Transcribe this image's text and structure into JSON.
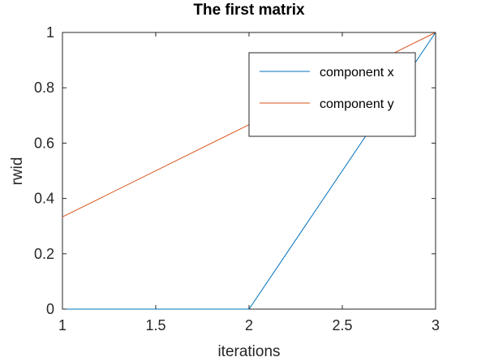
{
  "chart_data": {
    "type": "line",
    "title": "The first matrix",
    "xlabel": "iterations",
    "ylabel": "rwid",
    "xlim": [
      1,
      3
    ],
    "ylim": [
      0,
      1
    ],
    "xticks": [
      1,
      1.5,
      2,
      2.5,
      3
    ],
    "xtick_labels": [
      "1",
      "1.5",
      "2",
      "2.5",
      "3"
    ],
    "yticks": [
      0,
      0.2,
      0.4,
      0.6,
      0.8,
      1
    ],
    "ytick_labels": [
      "0",
      "0.2",
      "0.4",
      "0.6",
      "0.8",
      "1"
    ],
    "grid": false,
    "legend_position": "top-right",
    "x": [
      1,
      2,
      3
    ],
    "series": [
      {
        "name": "component x",
        "color": "#0072BD",
        "values": [
          0,
          0,
          1
        ]
      },
      {
        "name": "component y",
        "color": "#D95319",
        "values": [
          0.3333,
          0.6667,
          1
        ]
      }
    ]
  }
}
